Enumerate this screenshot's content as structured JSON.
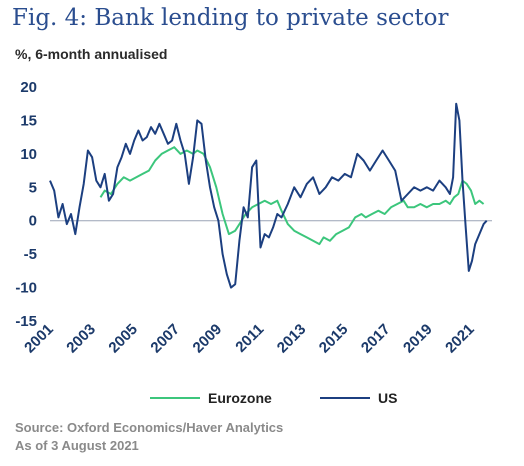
{
  "title": "Fig. 4: Bank lending to private sector",
  "subtitle": "%, 6-month annualised",
  "source": {
    "line1": "Source: Oxford Economics/Haver Analytics",
    "line2": "As of 3 August 2021"
  },
  "chart_data": {
    "type": "line",
    "title": "Fig. 4: Bank lending to private sector",
    "subtitle": "%, 6-month annualised",
    "xlabel": "",
    "ylabel": "",
    "ylim": [
      -15,
      20
    ],
    "xlim": [
      2001,
      2022
    ],
    "y_ticks": [
      20,
      15,
      10,
      5,
      0,
      -5,
      -10,
      -15
    ],
    "y_tick_labels": [
      "20",
      "15",
      "10",
      "5",
      "0",
      "-5",
      "-10",
      "-15"
    ],
    "x_ticks": [
      2001,
      2003,
      2005,
      2007,
      2009,
      2011,
      2013,
      2015,
      2017,
      2019,
      2021
    ],
    "x_tick_labels": [
      "2001",
      "2003",
      "2005",
      "2007",
      "2009",
      "2011",
      "2013",
      "2015",
      "2017",
      "2019",
      "2021"
    ],
    "grid": false,
    "legend_position": "bottom",
    "series": [
      {
        "name": "Eurozone",
        "color": "#3cc67c",
        "x": [
          2003.4,
          2003.6,
          2003.9,
          2004.2,
          2004.5,
          2004.8,
          2005.1,
          2005.4,
          2005.7,
          2006.0,
          2006.3,
          2006.6,
          2006.9,
          2007.2,
          2007.5,
          2007.8,
          2008.0,
          2008.3,
          2008.6,
          2008.9,
          2009.2,
          2009.5,
          2009.8,
          2010.0,
          2010.3,
          2010.6,
          2010.9,
          2011.2,
          2011.5,
          2011.8,
          2012.0,
          2012.3,
          2012.6,
          2012.9,
          2013.2,
          2013.5,
          2013.8,
          2014.0,
          2014.3,
          2014.6,
          2014.9,
          2015.2,
          2015.5,
          2015.8,
          2016.0,
          2016.3,
          2016.6,
          2016.9,
          2017.2,
          2017.5,
          2017.8,
          2018.0,
          2018.3,
          2018.6,
          2018.9,
          2019.2,
          2019.5,
          2019.8,
          2020.0,
          2020.2,
          2020.4,
          2020.6,
          2020.8,
          2021.0,
          2021.2,
          2021.4,
          2021.6
        ],
        "values": [
          3.5,
          4.5,
          4.0,
          5.5,
          6.5,
          6.0,
          6.5,
          7.0,
          7.5,
          9.0,
          10.0,
          10.5,
          11.0,
          10.0,
          10.5,
          10.0,
          10.5,
          10.0,
          8.0,
          5.0,
          1.0,
          -2.0,
          -1.5,
          -0.5,
          1.0,
          2.0,
          2.5,
          3.0,
          2.5,
          3.0,
          1.5,
          -0.5,
          -1.5,
          -2.0,
          -2.5,
          -3.0,
          -3.5,
          -2.5,
          -3.0,
          -2.0,
          -1.5,
          -1.0,
          0.5,
          1.0,
          0.5,
          1.0,
          1.5,
          1.0,
          2.0,
          2.5,
          3.0,
          2.0,
          2.0,
          2.5,
          2.0,
          2.5,
          2.5,
          3.0,
          2.5,
          3.5,
          4.0,
          6.0,
          5.5,
          4.5,
          2.5,
          3.0,
          2.5
        ]
      },
      {
        "name": "US",
        "color": "#1c3f80",
        "x": [
          2001.0,
          2001.2,
          2001.4,
          2001.6,
          2001.8,
          2002.0,
          2002.2,
          2002.4,
          2002.6,
          2002.8,
          2003.0,
          2003.2,
          2003.4,
          2003.6,
          2003.8,
          2004.0,
          2004.2,
          2004.4,
          2004.6,
          2004.8,
          2005.0,
          2005.2,
          2005.4,
          2005.6,
          2005.8,
          2006.0,
          2006.2,
          2006.4,
          2006.6,
          2006.8,
          2007.0,
          2007.2,
          2007.4,
          2007.6,
          2007.8,
          2008.0,
          2008.2,
          2008.4,
          2008.6,
          2008.8,
          2009.0,
          2009.2,
          2009.4,
          2009.6,
          2009.8,
          2010.0,
          2010.2,
          2010.4,
          2010.6,
          2010.8,
          2011.0,
          2011.2,
          2011.4,
          2011.6,
          2011.8,
          2012.0,
          2012.3,
          2012.6,
          2012.9,
          2013.2,
          2013.5,
          2013.8,
          2014.1,
          2014.4,
          2014.7,
          2015.0,
          2015.3,
          2015.6,
          2015.9,
          2016.2,
          2016.5,
          2016.8,
          2017.1,
          2017.4,
          2017.7,
          2018.0,
          2018.3,
          2018.6,
          2018.9,
          2019.2,
          2019.5,
          2019.8,
          2020.0,
          2020.15,
          2020.3,
          2020.45,
          2020.6,
          2020.75,
          2020.9,
          2021.05,
          2021.2,
          2021.4,
          2021.6,
          2021.75
        ],
        "values": [
          6.0,
          4.5,
          0.5,
          2.5,
          -0.5,
          1.0,
          -2.0,
          2.0,
          5.5,
          10.5,
          9.5,
          6.0,
          5.0,
          7.0,
          3.0,
          4.0,
          8.0,
          9.5,
          11.5,
          10.0,
          12.0,
          13.5,
          12.0,
          12.5,
          14.0,
          13.0,
          14.5,
          13.0,
          11.5,
          12.0,
          14.5,
          12.0,
          10.0,
          5.5,
          9.5,
          15.0,
          14.5,
          9.0,
          5.0,
          2.0,
          0.0,
          -5.0,
          -8.0,
          -10.0,
          -9.5,
          -3.0,
          2.0,
          0.5,
          8.0,
          9.0,
          -4.0,
          -2.0,
          -2.5,
          -1.0,
          1.0,
          0.5,
          2.5,
          5.0,
          3.5,
          5.5,
          6.5,
          4.0,
          5.0,
          6.5,
          6.0,
          7.0,
          6.5,
          10.0,
          9.0,
          7.5,
          9.0,
          10.5,
          9.0,
          7.5,
          3.0,
          4.0,
          5.0,
          4.5,
          5.0,
          4.5,
          6.0,
          5.0,
          4.0,
          6.5,
          17.5,
          15.0,
          6.0,
          -1.0,
          -7.5,
          -6.0,
          -3.5,
          -2.0,
          -0.5,
          0.0
        ]
      }
    ]
  }
}
